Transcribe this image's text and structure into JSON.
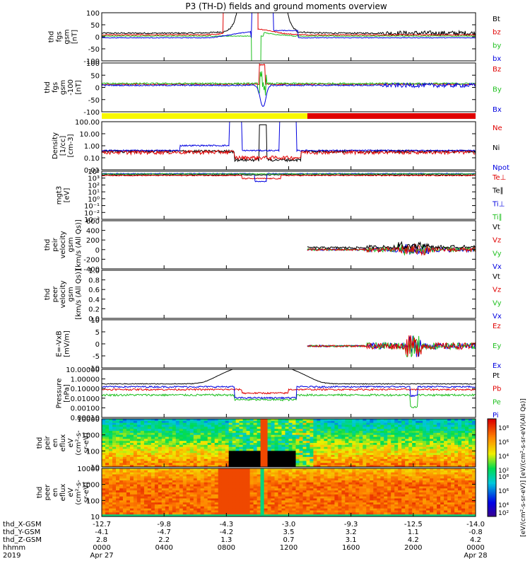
{
  "title": "P3 (TH-D) fields and ground moments overview",
  "chart_data": {
    "type": "line",
    "x_time_labels": [
      "0000",
      "0400",
      "0800",
      "1200",
      "1600",
      "2000",
      "0000"
    ],
    "x_hours": [
      0,
      4,
      8,
      12,
      16,
      20,
      24
    ],
    "x_date_labels": [
      "Apr 27",
      "Apr 28"
    ],
    "year": "2019",
    "ephemeris": {
      "labels": [
        "thd_X-GSM",
        "thd_Y-GSM",
        "thd_Z-GSM",
        "hhmm",
        "2019"
      ],
      "rows": [
        [
          "-12.7",
          "-9.8",
          "-4.3",
          "-3.0",
          "-9.3",
          "-12.5",
          "-14.0"
        ],
        [
          "-4.1",
          "-4.7",
          "-4.2",
          "3.5",
          "3.2",
          "1.1",
          "-0.8"
        ],
        [
          "2.8",
          "2.2",
          "1.3",
          "0.7",
          "3.1",
          "4.2",
          "4.2"
        ]
      ]
    },
    "colors": {
      "black": "#000000",
      "red": "#e00000",
      "green": "#20c020",
      "blue": "#0000e0",
      "yellow": "#f8f800"
    },
    "panels": [
      {
        "key": "fgs_gsm",
        "ylabel": [
          "thd",
          "fgs",
          "gsm",
          "[nT]"
        ],
        "yticks": [
          "100",
          "50",
          "0",
          "-50",
          "-100"
        ],
        "ylim": [
          -100,
          100
        ],
        "legend": [
          {
            "t": "Bt",
            "c": "black"
          },
          {
            "t": "bz",
            "c": "red"
          },
          {
            "t": "by",
            "c": "green"
          },
          {
            "t": "bx",
            "c": "blue"
          }
        ]
      },
      {
        "key": "fgs_gsm_l",
        "ylabel": [
          "thd",
          "fgs",
          "gsm",
          "-100",
          "[nT]"
        ],
        "yticks": [
          "100",
          "50",
          "0",
          "-50",
          "-100"
        ],
        "ylim": [
          -125,
          100
        ],
        "legend": [
          {
            "t": "Bz",
            "c": "red"
          },
          {
            "t": "By",
            "c": "green"
          },
          {
            "t": "Bx",
            "c": "blue"
          }
        ]
      },
      {
        "key": "density",
        "ylabel": [
          "Density",
          "[1/cc]",
          "[cm-3]"
        ],
        "yticks": [
          "100.00",
          "10.00",
          "1.00",
          "0.10",
          "0.01"
        ],
        "ylim": [
          0.005,
          200
        ],
        "log": true,
        "legend": [
          {
            "t": "Ne",
            "c": "red"
          },
          {
            "t": "Ni",
            "c": "black"
          },
          {
            "t": "Npot",
            "c": "blue"
          }
        ]
      },
      {
        "key": "temp",
        "ylabel": [
          "mgt3",
          "[eV]"
        ],
        "yticks": [
          "10⁴",
          "10³",
          "10²",
          "10¹",
          "10⁰",
          "10⁻¹",
          "10⁻²",
          "10⁻³"
        ],
        "ylim": [
          0.0001,
          10000
        ],
        "log": true,
        "legend": [
          {
            "t": "Te⊥",
            "c": "red"
          },
          {
            "t": "Te∥",
            "c": "black"
          },
          {
            "t": "Ti⊥",
            "c": "blue"
          },
          {
            "t": "Ti∥",
            "c": "green"
          }
        ]
      },
      {
        "key": "peir_vel",
        "ylabel": [
          "thd",
          "peir",
          "velocity",
          "gsm",
          "[km/s (All Qs)]"
        ],
        "yticks": [
          "600",
          "400",
          "200",
          "0",
          "-200",
          "-400"
        ],
        "ylim": [
          -400,
          600
        ],
        "legend": [
          {
            "t": "Vt",
            "c": "black"
          },
          {
            "t": "Vz",
            "c": "red"
          },
          {
            "t": "Vy",
            "c": "green"
          },
          {
            "t": "Vx",
            "c": "blue"
          }
        ]
      },
      {
        "key": "peer_vel",
        "ylabel": [
          "thd",
          "peer",
          "velocity",
          "gsm",
          "[km/s (All Qs)]"
        ],
        "yticks": [
          "1.0",
          "0.8",
          "0.6",
          "0.4",
          "0.2",
          "0.0"
        ],
        "ylim": [
          0,
          1
        ],
        "legend": [
          {
            "t": "Vt",
            "c": "black"
          },
          {
            "t": "Vz",
            "c": "red"
          },
          {
            "t": "Vy",
            "c": "green"
          },
          {
            "t": "Vx",
            "c": "blue"
          }
        ]
      },
      {
        "key": "efield",
        "ylabel": [
          "E=-VxB",
          "[mV/m]"
        ],
        "yticks": [
          "10",
          "5",
          "0",
          "-5",
          "-10"
        ],
        "ylim": [
          -10,
          12
        ],
        "legend": [
          {
            "t": "Ez",
            "c": "red"
          },
          {
            "t": "Ey",
            "c": "green"
          },
          {
            "t": "Ex",
            "c": "blue"
          }
        ]
      },
      {
        "key": "pressure",
        "ylabel": [
          "Pressure",
          "[nPa]"
        ],
        "yticks": [
          "10.00000",
          "1.00000",
          "0.10000",
          "0.01000",
          "0.00100",
          "0.00010"
        ],
        "ylim": [
          5e-05,
          10
        ],
        "log": true,
        "legend": [
          {
            "t": "Pt",
            "c": "black"
          },
          {
            "t": "Pb",
            "c": "red"
          },
          {
            "t": "Pe",
            "c": "green"
          },
          {
            "t": "Pi",
            "c": "blue"
          }
        ]
      },
      {
        "key": "peir_eflux",
        "ylabel": [
          "thd",
          "peir",
          "en",
          "eflux",
          "eV",
          "(cm²-s-",
          "sr-eV)"
        ],
        "yticks": [
          "10000",
          "1000",
          "100",
          "10"
        ],
        "ylim": [
          5,
          30000
        ],
        "log": true,
        "type": "heatmap"
      },
      {
        "key": "peer_eflux",
        "ylabel": [
          "thd",
          "peer",
          "en",
          "eflux",
          "eV",
          "(cm²-s-",
          "sr-eV)"
        ],
        "yticks": [
          "10000",
          "1000",
          "100",
          "10"
        ],
        "ylim": [
          5,
          30000
        ],
        "log": true,
        "type": "heatmap"
      }
    ],
    "colorbar": {
      "ticks": [
        "10⁸",
        "10⁶",
        "10⁴",
        "10²",
        "10⁸",
        "10⁶",
        "10⁴",
        "10²"
      ],
      "label": "[eV/(cm²-s-sr-eV)] [eV/(cm²-s-sr-eV)(All Qs)]"
    },
    "status_bar": {
      "yellow_until_hour": 13.2,
      "red_from_hour": 13.2
    }
  }
}
